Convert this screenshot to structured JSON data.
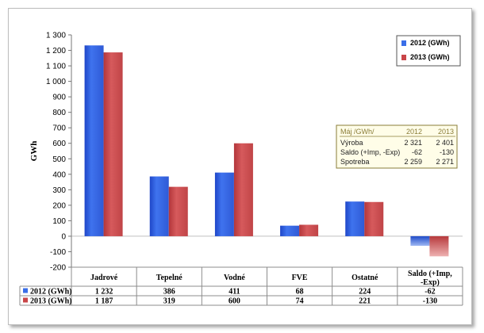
{
  "chart_data": {
    "type": "bar",
    "title": "",
    "ylabel": "GWh",
    "xlabel": "",
    "ylim": [
      -200,
      1300
    ],
    "y_ticks": [
      "1 300",
      "1 200",
      "1 100",
      "1 000",
      "900",
      "800",
      "700",
      "600",
      "500",
      "400",
      "300",
      "200",
      "100",
      "0",
      "-100",
      "-200"
    ],
    "y_tick_values": [
      1300,
      1200,
      1100,
      1000,
      900,
      800,
      700,
      600,
      500,
      400,
      300,
      200,
      100,
      0,
      -100,
      -200
    ],
    "categories": [
      "Jadrové",
      "Tepelné",
      "Vodné",
      "FVE",
      "Ostatné",
      "Saldo (+Imp, -Exp)"
    ],
    "category_lines": [
      [
        "Jadrové"
      ],
      [
        "Tepelné"
      ],
      [
        "Vodné"
      ],
      [
        "FVE"
      ],
      [
        "Ostatné"
      ],
      [
        "Saldo (+Imp,",
        "-Exp)"
      ]
    ],
    "series": [
      {
        "name": "2012 (GWh)",
        "values": [
          1232,
          386,
          411,
          68,
          224,
          -62
        ],
        "labels": [
          "1 232",
          "386",
          "411",
          "68",
          "224",
          "-62"
        ]
      },
      {
        "name": "2013 (GWh)",
        "values": [
          1187,
          319,
          600,
          74,
          221,
          -130
        ],
        "labels": [
          "1 187",
          "319",
          "600",
          "74",
          "221",
          "-130"
        ]
      }
    ],
    "grid": false,
    "legend_position": "top-right",
    "table_below": true
  },
  "annotation": {
    "header": [
      "Máj /GWh/",
      "2012",
      "2013"
    ],
    "rows": [
      [
        "Výroba",
        "2 321",
        "2 401"
      ],
      [
        "Saldo (+Imp, -Exp)",
        "-62",
        "-130"
      ],
      [
        "Spotreba",
        "2 259",
        "2 271"
      ]
    ]
  },
  "colors": {
    "series_2012": "#3a6ee8",
    "series_2012_dark": "#1e46b8",
    "series_2013": "#c94548",
    "series_2013_dark": "#a92e31",
    "annotation_bg": "#fffde8",
    "annotation_border": "#8a7d38"
  }
}
